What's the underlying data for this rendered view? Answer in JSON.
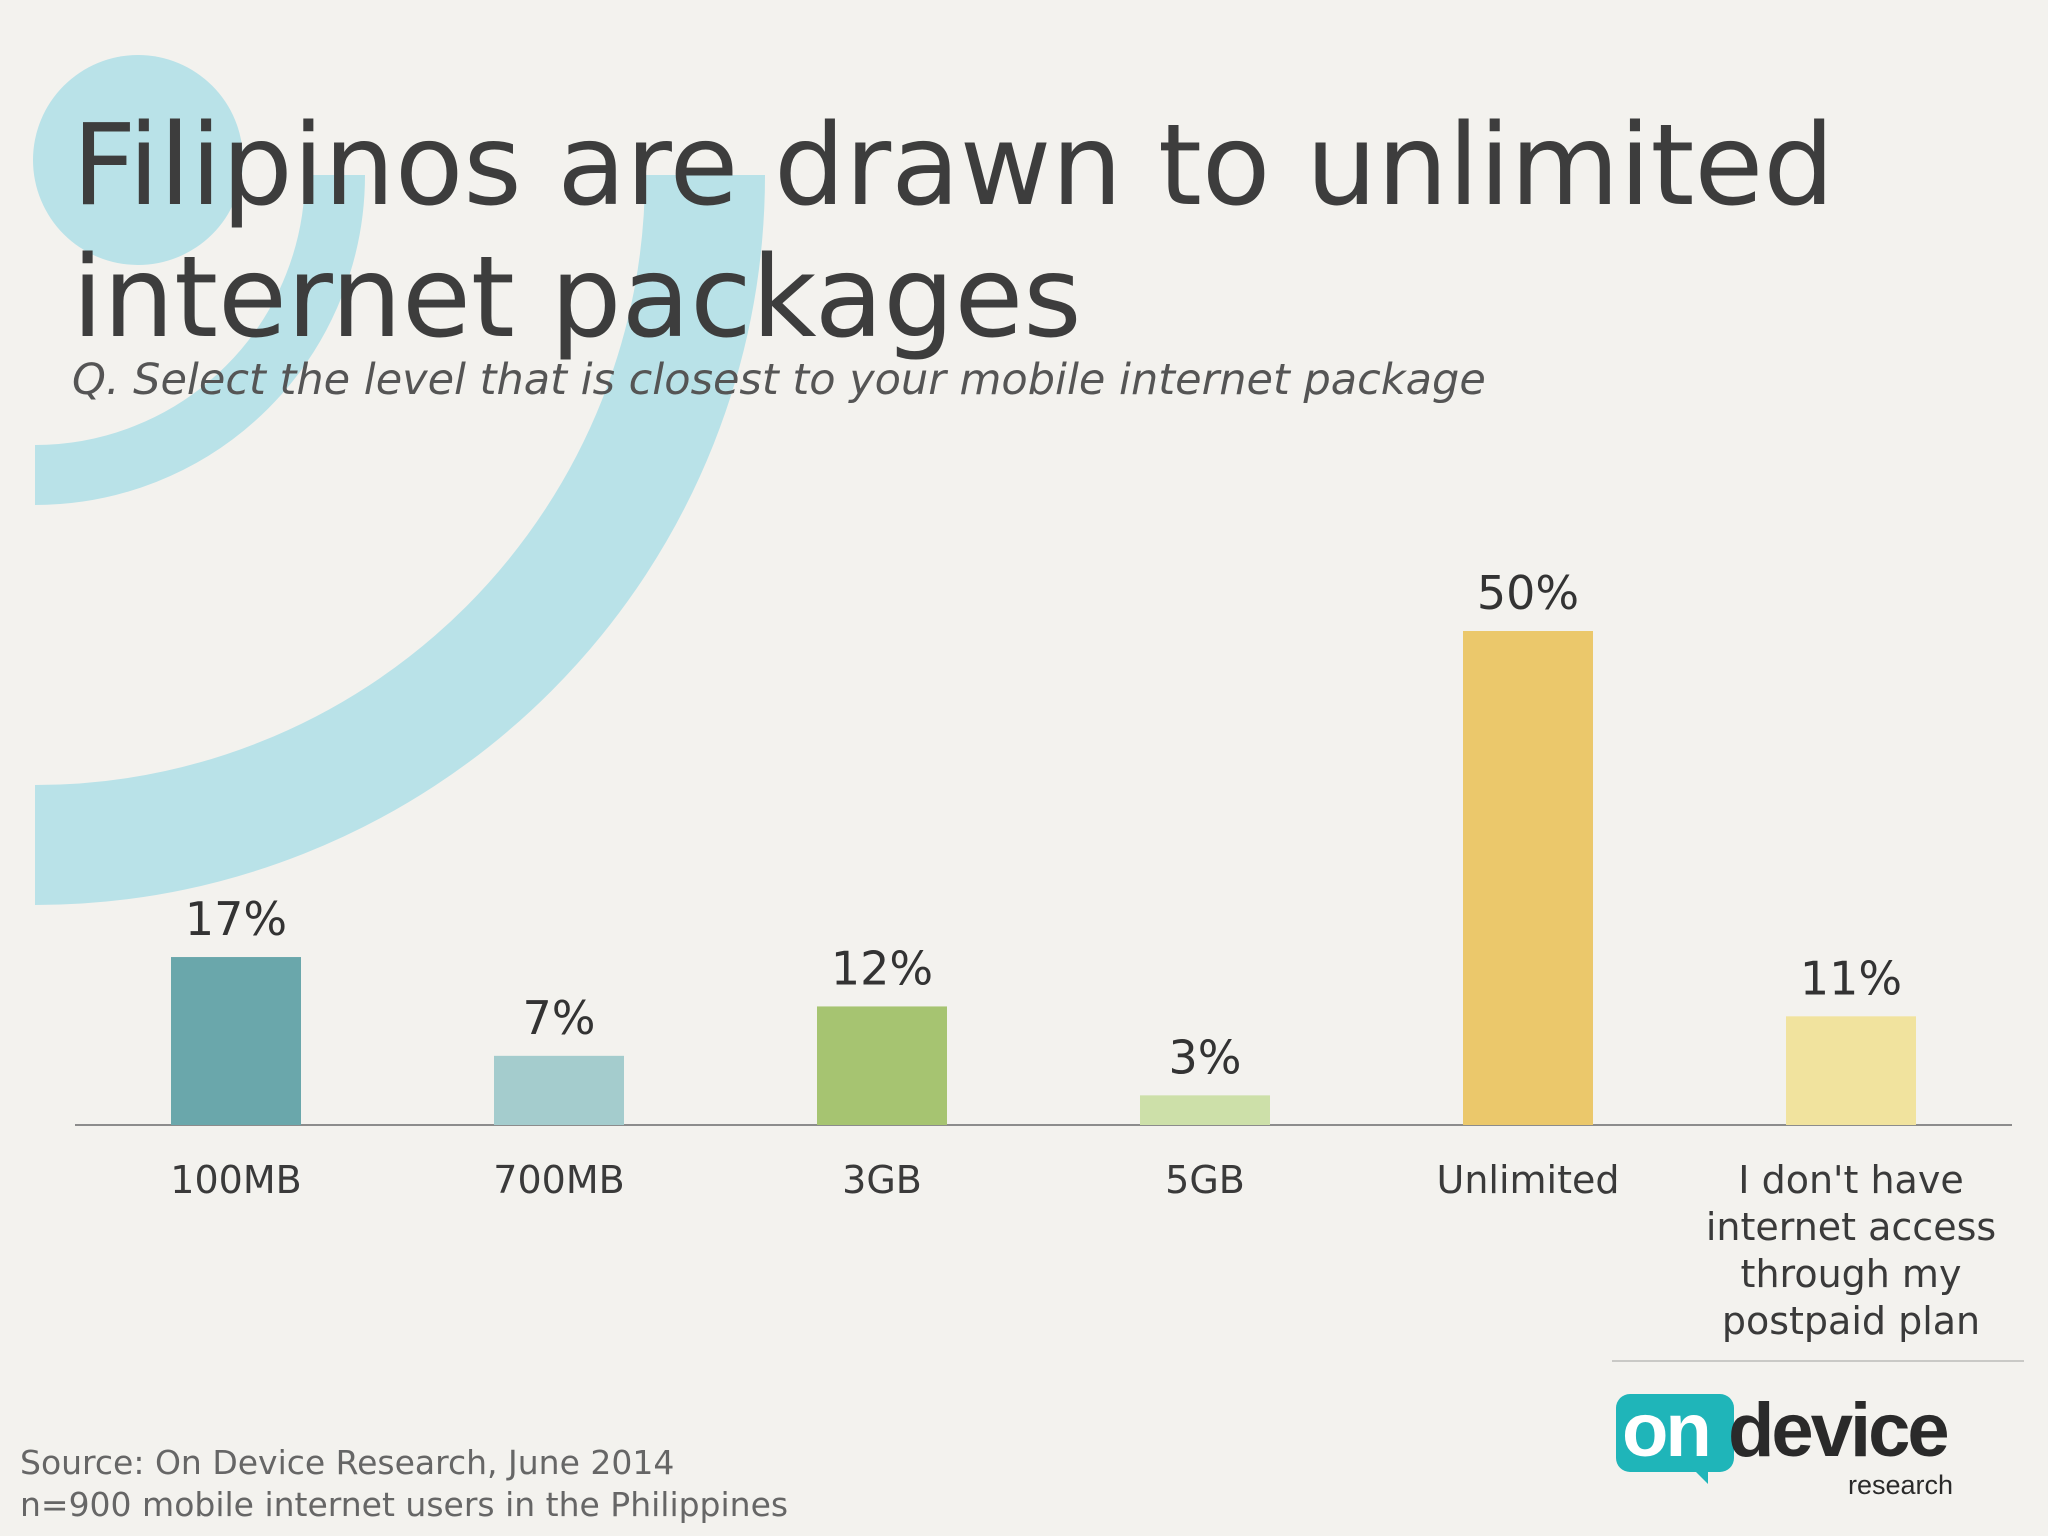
{
  "title": "Filipinos are drawn to unlimited internet packages",
  "subtitle": "Q. Select the level that is closest to your mobile internet package",
  "chart_data": {
    "type": "bar",
    "categories": [
      "100MB",
      "700MB",
      "3GB",
      "5GB",
      "Unlimited",
      "I don't have internet access through my postpaid plan"
    ],
    "category_lines": [
      [
        "100MB"
      ],
      [
        "700MB"
      ],
      [
        "3GB"
      ],
      [
        "5GB"
      ],
      [
        "Unlimited"
      ],
      [
        "I don't have",
        "internet access",
        "through my",
        "postpaid plan"
      ]
    ],
    "values": [
      17,
      7,
      12,
      3,
      50,
      11
    ],
    "value_labels": [
      "17%",
      "7%",
      "12%",
      "3%",
      "50%",
      "11%"
    ],
    "colors": [
      "#6aa7ab",
      "#a4cccd",
      "#a6c471",
      "#cde0a9",
      "#ebc86b",
      "#f1e39e"
    ],
    "ylim": [
      0,
      50
    ],
    "grid": false,
    "xlabel": "",
    "ylabel": ""
  },
  "source": {
    "line1": "Source: On Device Research, June 2014",
    "line2": "n=900 mobile internet users in the Philippines"
  },
  "logo": {
    "text_on": "on",
    "text_device": "device",
    "text_research": "research",
    "accent_color": "#1fb5b9"
  },
  "decoration": {
    "arc_color": "#b9e2e8"
  }
}
